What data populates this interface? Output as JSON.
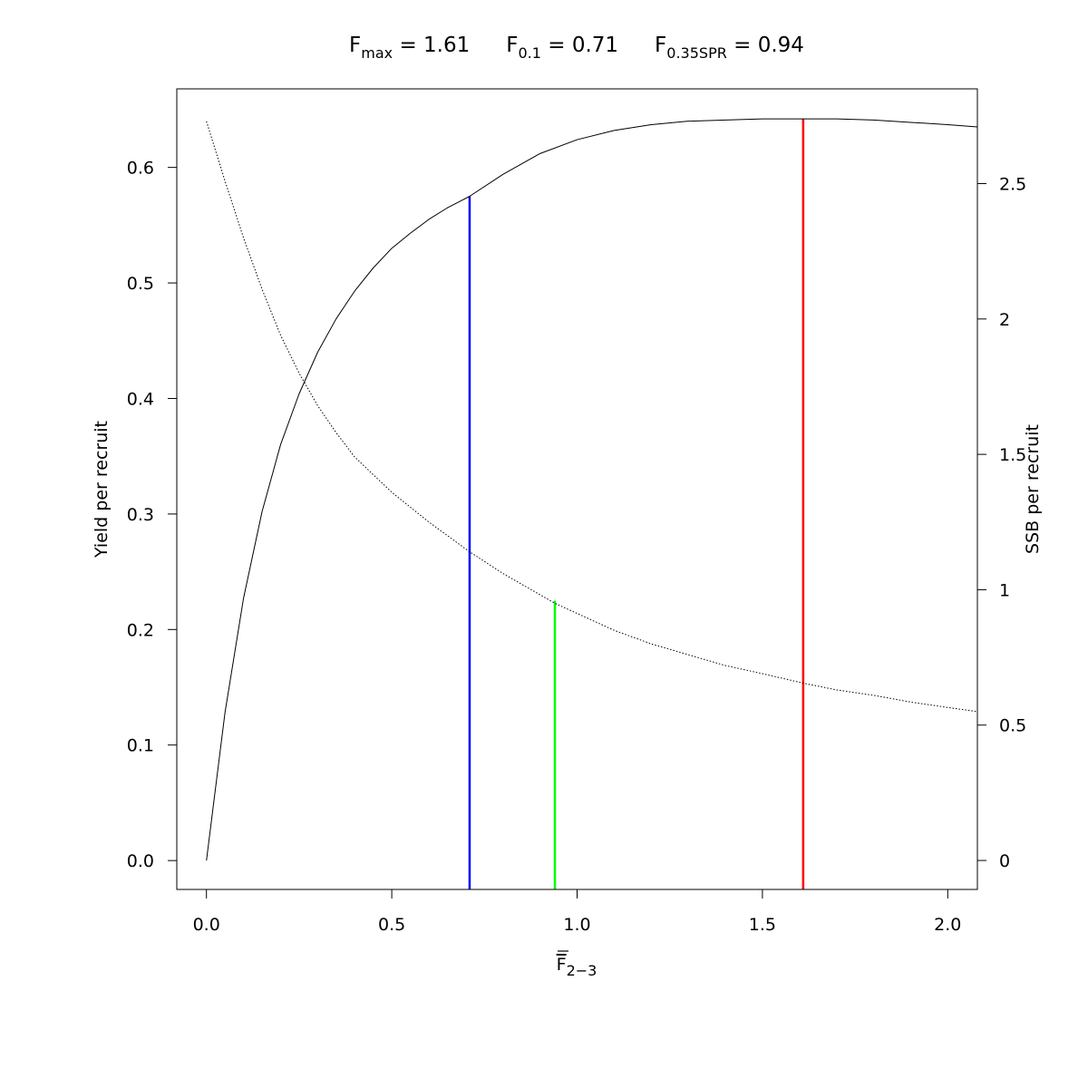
{
  "chart_data": {
    "type": "line",
    "title_parts": [
      {
        "main": "F",
        "sub": "max",
        "rest": " = 1.61"
      },
      {
        "main": "F",
        "sub": "0.1",
        "rest": " = 0.71"
      },
      {
        "main": "F",
        "sub": "0.35SPR",
        "rest": " = 0.94"
      }
    ],
    "xlabel": {
      "main": "F",
      "sub": "2−3"
    },
    "ylabel_left": "Yield per recruit",
    "ylabel_right": "SSB per recruit",
    "xlim": [
      -0.08,
      2.08
    ],
    "ylim_left": [
      -0.025,
      0.668
    ],
    "ylim_right": [
      -0.107,
      2.85
    ],
    "x_ticks": [
      {
        "value": 0.0,
        "label": "0.0"
      },
      {
        "value": 0.5,
        "label": "0.5"
      },
      {
        "value": 1.0,
        "label": "1.0"
      },
      {
        "value": 1.5,
        "label": "1.5"
      },
      {
        "value": 2.0,
        "label": "2.0"
      }
    ],
    "y_left_ticks": [
      {
        "value": 0.0,
        "label": "0.0"
      },
      {
        "value": 0.1,
        "label": "0.1"
      },
      {
        "value": 0.2,
        "label": "0.2"
      },
      {
        "value": 0.3,
        "label": "0.3"
      },
      {
        "value": 0.4,
        "label": "0.4"
      },
      {
        "value": 0.5,
        "label": "0.5"
      },
      {
        "value": 0.6,
        "label": "0.6"
      }
    ],
    "y_right_ticks": [
      {
        "value": 0,
        "label": "0"
      },
      {
        "value": 0.5,
        "label": "0.5"
      },
      {
        "value": 1,
        "label": "1"
      },
      {
        "value": 1.5,
        "label": "1.5"
      },
      {
        "value": 2,
        "label": "2"
      },
      {
        "value": 2.5,
        "label": "2.5"
      }
    ],
    "series": [
      {
        "axis": "left",
        "style": "solid",
        "color": "#000000",
        "x": [
          0.0,
          0.05,
          0.1,
          0.15,
          0.2,
          0.25,
          0.3,
          0.35,
          0.4,
          0.45,
          0.5,
          0.55,
          0.6,
          0.65,
          0.71,
          0.8,
          0.9,
          1.0,
          1.1,
          1.2,
          1.3,
          1.4,
          1.5,
          1.61,
          1.7,
          1.8,
          1.9,
          2.0,
          2.08
        ],
        "y": [
          0.0,
          0.128,
          0.227,
          0.302,
          0.36,
          0.404,
          0.44,
          0.469,
          0.493,
          0.513,
          0.53,
          0.543,
          0.555,
          0.565,
          0.575,
          0.594,
          0.612,
          0.624,
          0.632,
          0.637,
          0.64,
          0.641,
          0.642,
          0.642,
          0.642,
          0.641,
          0.639,
          0.637,
          0.635
        ]
      },
      {
        "axis": "right",
        "style": "dotted",
        "color": "#000000",
        "x": [
          0.0,
          0.05,
          0.1,
          0.15,
          0.2,
          0.25,
          0.3,
          0.35,
          0.4,
          0.5,
          0.6,
          0.71,
          0.8,
          0.94,
          1.1,
          1.2,
          1.3,
          1.4,
          1.5,
          1.61,
          1.7,
          1.8,
          1.9,
          2.0,
          2.08
        ],
        "y": [
          2.73,
          2.51,
          2.3,
          2.11,
          1.94,
          1.8,
          1.68,
          1.58,
          1.49,
          1.36,
          1.25,
          1.14,
          1.06,
          0.95,
          0.85,
          0.8,
          0.76,
          0.72,
          0.69,
          0.655,
          0.63,
          0.61,
          0.585,
          0.565,
          0.55
        ]
      }
    ],
    "reference_lines": [
      {
        "x": 0.71,
        "y_top": 0.575,
        "color": "#0000ff"
      },
      {
        "x": 0.94,
        "y_top": 0.225,
        "color": "#00ff00"
      },
      {
        "x": 1.61,
        "y_top": 0.642,
        "color": "#ff0000"
      }
    ],
    "grid": false,
    "legend": "none"
  }
}
